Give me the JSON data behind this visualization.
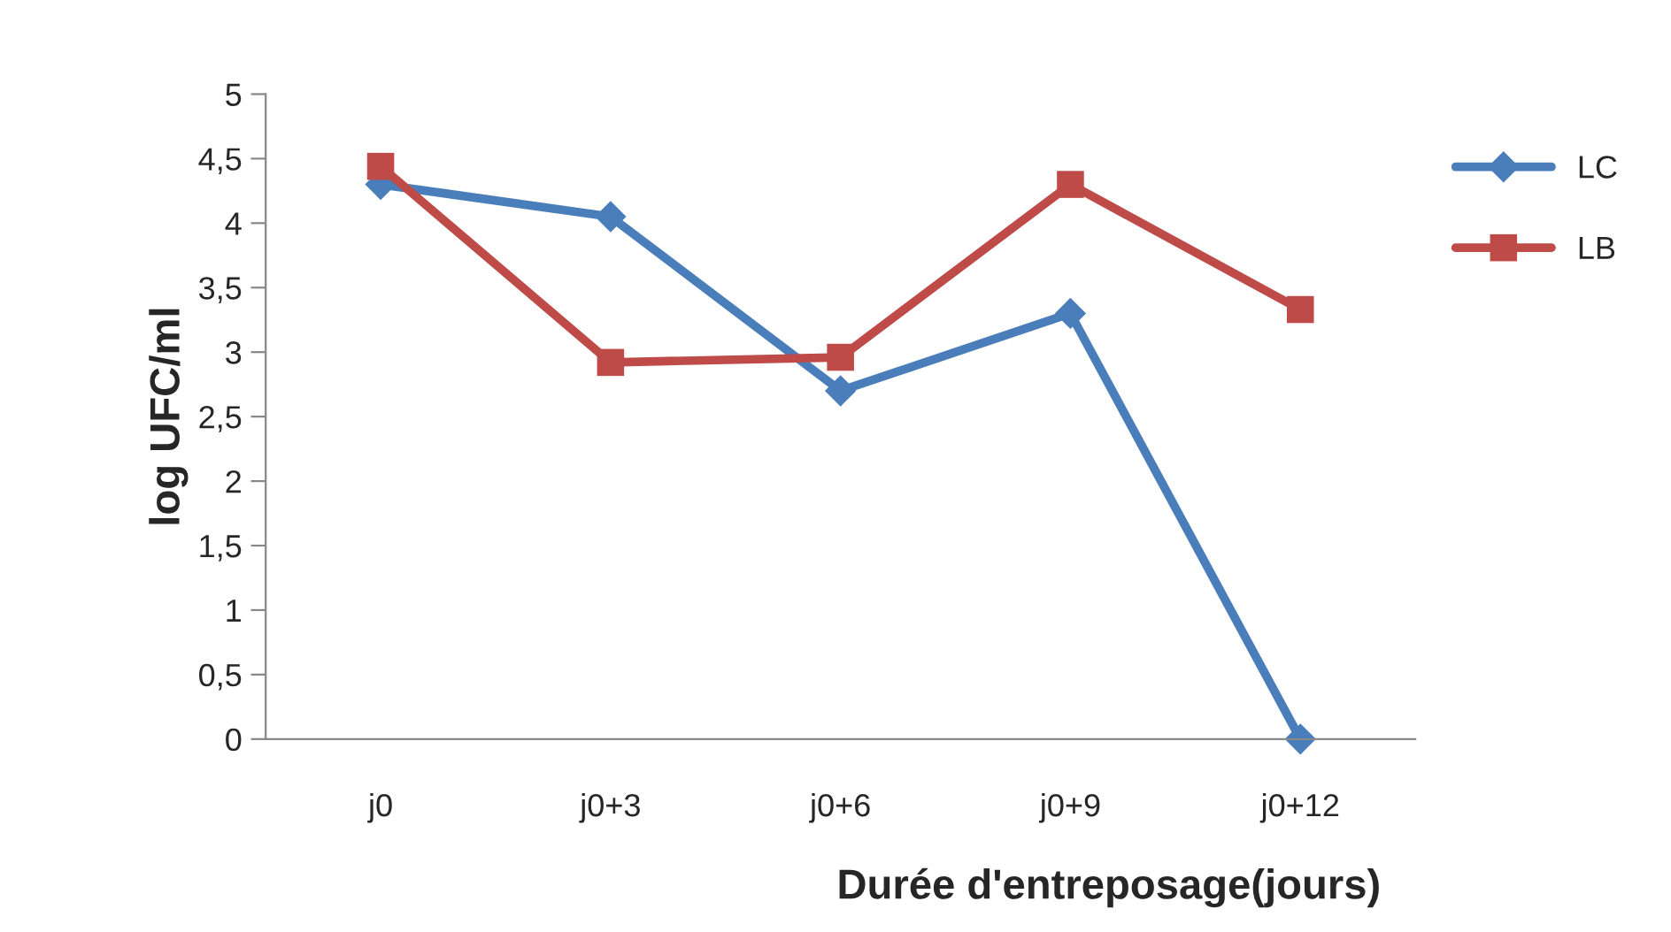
{
  "chart_data": {
    "type": "line",
    "xlabel": "Durée d'entreposage(jours)",
    "ylabel": "log UFC/ml",
    "categories": [
      "j0",
      "j0+3",
      "j0+6",
      "j0+9",
      "j0+12"
    ],
    "series": [
      {
        "name": "LC",
        "color": "#4a7ebb",
        "marker": "diamond",
        "values": [
          4.3,
          4.05,
          2.7,
          3.3,
          0
        ]
      },
      {
        "name": "LB",
        "color": "#be4b48",
        "marker": "square",
        "values": [
          4.44,
          2.92,
          2.96,
          4.3,
          3.33
        ]
      }
    ],
    "ylim": [
      0,
      5
    ],
    "yticks": [
      0,
      {
        "value": 0.5,
        "label": "0,5"
      },
      1,
      {
        "value": 1.5,
        "label": "1,5"
      },
      2,
      {
        "value": 2.5,
        "label": "2,5"
      },
      3,
      {
        "value": 3.5,
        "label": "3,5"
      },
      4,
      {
        "value": 4.5,
        "label": "4,5"
      },
      5
    ],
    "grid": false,
    "legend": "right",
    "line_style": "solid"
  }
}
